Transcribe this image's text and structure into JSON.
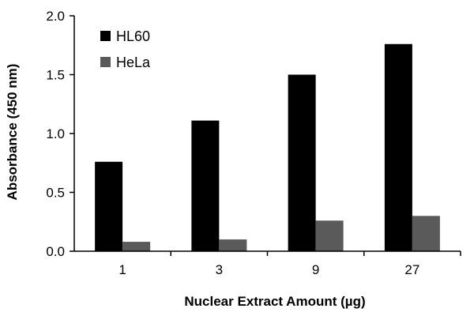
{
  "chart_data": {
    "type": "bar",
    "categories": [
      "1",
      "3",
      "9",
      "27"
    ],
    "series": [
      {
        "name": "HL60",
        "values": [
          0.76,
          1.11,
          1.5,
          1.76
        ],
        "color": "#000000"
      },
      {
        "name": "HeLa",
        "values": [
          0.08,
          0.1,
          0.26,
          0.3
        ],
        "color": "#5a5a5a"
      }
    ],
    "xlabel": "Nuclear Extract Amount (µg)",
    "ylabel": "Absorbance (450 nm)",
    "ylim": [
      0,
      2.0
    ],
    "yticks": [
      "0.0",
      "0.5",
      "1.0",
      "1.5",
      "2.0"
    ],
    "grid": false,
    "legend_position": "top-left"
  }
}
